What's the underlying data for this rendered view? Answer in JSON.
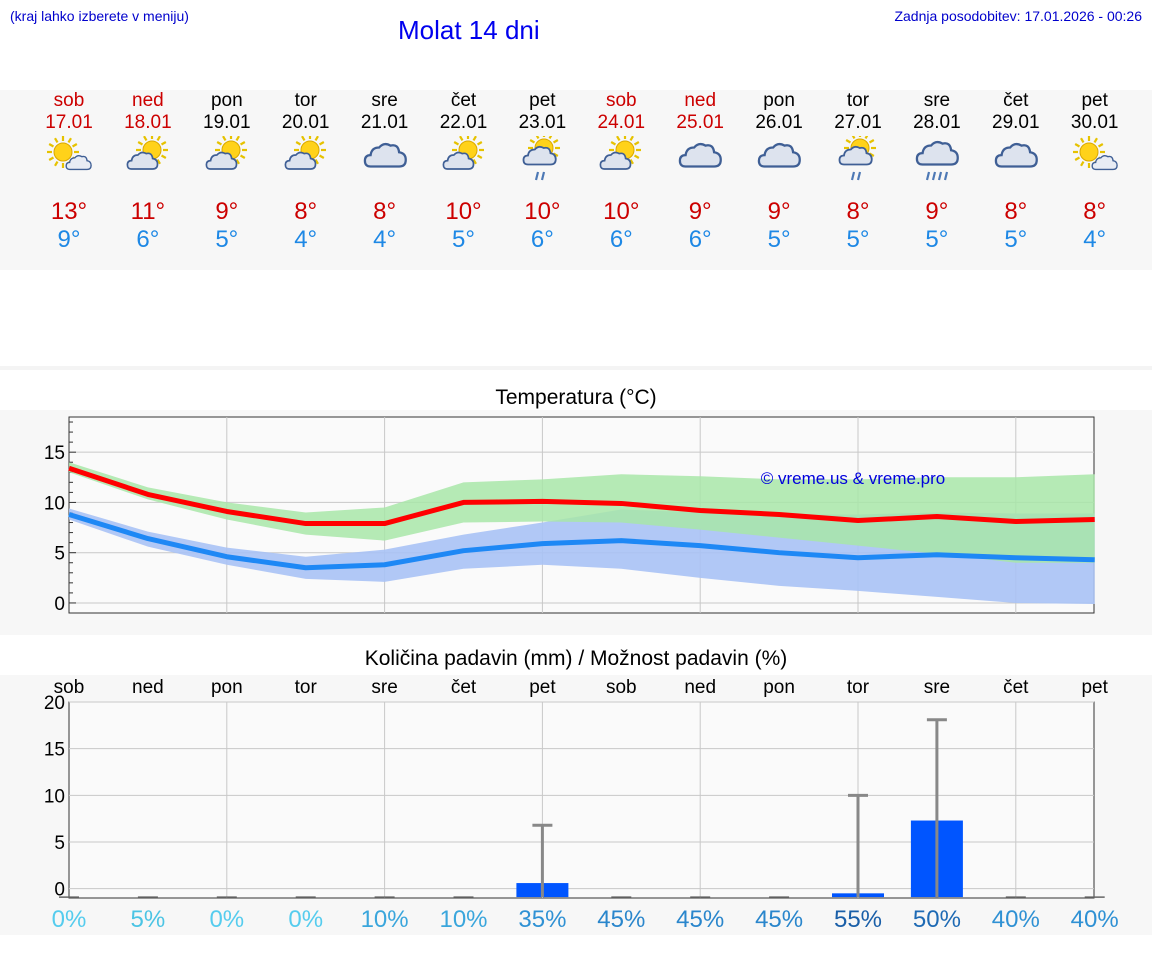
{
  "header": {
    "location_hint": "(kraj lahko izberete v meniju)",
    "title": "Molat 14 dni",
    "updated": "Zadnja posodobitev: 17.01.2026 - 00:26"
  },
  "days": [
    {
      "name": "sob",
      "date": "17.01",
      "max": "13°",
      "min": "9°",
      "weekend": true,
      "icon": "sun-cloud-icon"
    },
    {
      "name": "ned",
      "date": "18.01",
      "max": "11°",
      "min": "6°",
      "weekend": true,
      "icon": "sun-behind-cloud-icon"
    },
    {
      "name": "pon",
      "date": "19.01",
      "max": "9°",
      "min": "5°",
      "weekend": false,
      "icon": "sun-behind-cloud-icon"
    },
    {
      "name": "tor",
      "date": "20.01",
      "max": "8°",
      "min": "4°",
      "weekend": false,
      "icon": "sun-behind-cloud-icon"
    },
    {
      "name": "sre",
      "date": "21.01",
      "max": "8°",
      "min": "4°",
      "weekend": false,
      "icon": "cloudy-icon"
    },
    {
      "name": "čet",
      "date": "22.01",
      "max": "10°",
      "min": "5°",
      "weekend": false,
      "icon": "sun-behind-cloud-icon"
    },
    {
      "name": "pet",
      "date": "23.01",
      "max": "10°",
      "min": "6°",
      "weekend": false,
      "icon": "sun-cloud-rain-icon"
    },
    {
      "name": "sob",
      "date": "24.01",
      "max": "10°",
      "min": "6°",
      "weekend": true,
      "icon": "sun-behind-cloud-icon"
    },
    {
      "name": "ned",
      "date": "25.01",
      "max": "9°",
      "min": "6°",
      "weekend": true,
      "icon": "cloudy-icon"
    },
    {
      "name": "pon",
      "date": "26.01",
      "max": "9°",
      "min": "5°",
      "weekend": false,
      "icon": "cloudy-icon"
    },
    {
      "name": "tor",
      "date": "27.01",
      "max": "8°",
      "min": "5°",
      "weekend": false,
      "icon": "sun-cloud-rain-icon"
    },
    {
      "name": "sre",
      "date": "28.01",
      "max": "9°",
      "min": "5°",
      "weekend": false,
      "icon": "cloud-rain-icon"
    },
    {
      "name": "čet",
      "date": "29.01",
      "max": "8°",
      "min": "5°",
      "weekend": false,
      "icon": "cloudy-icon"
    },
    {
      "name": "pet",
      "date": "30.01",
      "max": "8°",
      "min": "4°",
      "weekend": false,
      "icon": "sun-cloud-icon"
    }
  ],
  "colors": {
    "max": "#ff0000",
    "min": "#1e88f5",
    "max_band": "#a8e6a8",
    "min_band": "#a9c2f5",
    "bar": "#0055ff",
    "error": "#888888"
  },
  "chart_data": [
    {
      "type": "line",
      "title": "Temperatura (°C)",
      "watermark": "© vreme.us & vreme.pro",
      "x": [
        0,
        1,
        2,
        3,
        4,
        5,
        6,
        7,
        8,
        9,
        10,
        11,
        12,
        13
      ],
      "ylim": [
        -1,
        18.5
      ],
      "yticks": [
        0,
        5,
        10,
        15
      ],
      "series": [
        {
          "name": "max",
          "values": [
            13.4,
            10.8,
            9.1,
            7.9,
            7.9,
            10.0,
            10.1,
            9.9,
            9.2,
            8.8,
            8.2,
            8.6,
            8.1,
            8.3
          ],
          "band_low": [
            13.0,
            10.3,
            8.3,
            6.8,
            6.2,
            8.0,
            8.1,
            8.0,
            7.3,
            6.5,
            5.7,
            4.9,
            4.0,
            4.0
          ],
          "band_high": [
            14.0,
            11.5,
            10.0,
            9.0,
            9.5,
            12.0,
            12.3,
            12.8,
            12.6,
            12.3,
            12.3,
            12.5,
            12.5,
            12.8
          ]
        },
        {
          "name": "min",
          "values": [
            8.8,
            6.4,
            4.6,
            3.5,
            3.8,
            5.2,
            5.9,
            6.2,
            5.7,
            5.0,
            4.5,
            4.8,
            4.5,
            4.3
          ],
          "band_low": [
            8.3,
            5.6,
            3.8,
            2.4,
            2.1,
            3.4,
            3.8,
            3.4,
            2.5,
            1.7,
            1.2,
            0.6,
            0.0,
            -0.1
          ],
          "band_high": [
            9.4,
            7.1,
            5.5,
            4.6,
            5.3,
            6.8,
            8.0,
            9.3,
            9.0,
            8.8,
            8.8,
            9.0,
            8.9,
            8.9
          ]
        }
      ]
    },
    {
      "type": "bar",
      "title": "Količina padavin (mm) / Možnost padavin (%)",
      "categories": [
        "sob",
        "ned",
        "pon",
        "tor",
        "sre",
        "čet",
        "pet",
        "sob",
        "ned",
        "pon",
        "tor",
        "sre",
        "čet",
        "pet"
      ],
      "values": [
        0,
        0,
        0,
        0,
        0,
        0,
        1.5,
        0,
        0,
        0,
        0.4,
        8.2,
        0,
        0
      ],
      "error_high": [
        0,
        0,
        0,
        0,
        0,
        0,
        7.7,
        0,
        0,
        0,
        10.9,
        19.0,
        0,
        0
      ],
      "probabilities": [
        "0%",
        "5%",
        "0%",
        "0%",
        "10%",
        "10%",
        "35%",
        "45%",
        "45%",
        "45%",
        "55%",
        "50%",
        "40%",
        "40%"
      ],
      "prob_colors": [
        "#55ccee",
        "#4bc4e4",
        "#55ccee",
        "#55ccee",
        "#3aa6dc",
        "#3aa6dc",
        "#2f91d4",
        "#2a86cc",
        "#2a86cc",
        "#2a86cc",
        "#1a5fa8",
        "#1e6ab4",
        "#2f91d4",
        "#2f91d4"
      ],
      "ylim": [
        -1,
        20
      ],
      "yticks": [
        0,
        5,
        10,
        15,
        20
      ]
    }
  ]
}
